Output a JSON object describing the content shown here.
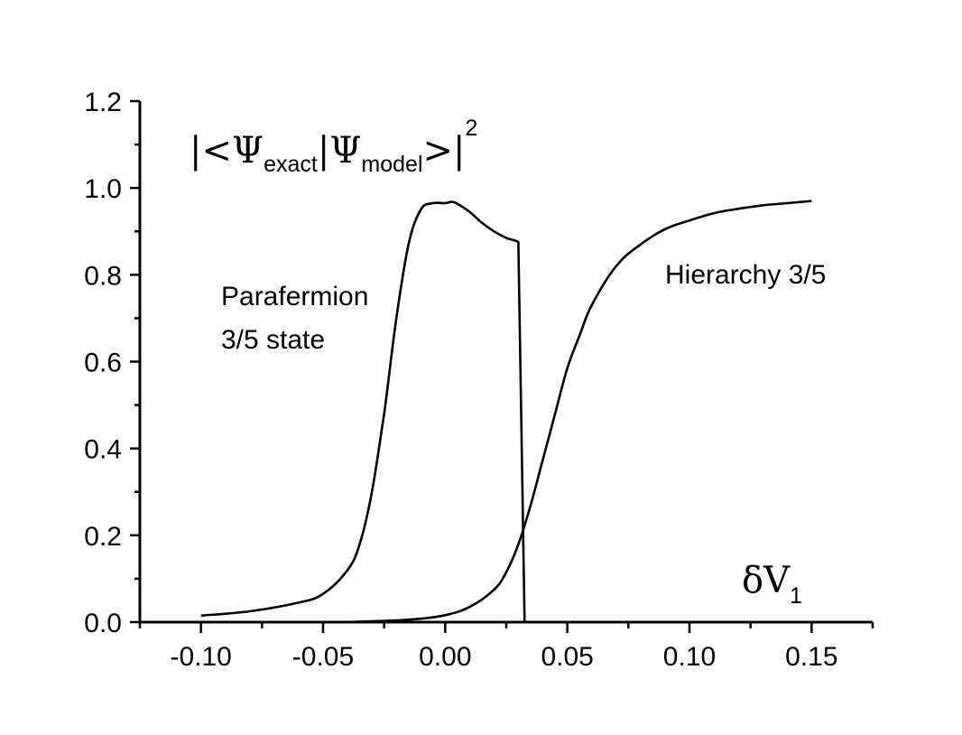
{
  "chart_data": {
    "type": "line",
    "xlim": [
      -0.125,
      0.175
    ],
    "ylim": [
      0.0,
      1.2
    ],
    "x_ticks": [
      "-0.10",
      "-0.05",
      "0.00",
      "0.05",
      "0.10",
      "0.15"
    ],
    "y_ticks": [
      "0.0",
      "0.2",
      "0.4",
      "0.6",
      "0.8",
      "1.0",
      "1.2"
    ],
    "grid": false,
    "ylabel": {
      "open": "|<Ψ",
      "sub1": "exact",
      "mid": "|Ψ",
      "sub2": "model",
      "close": ">|",
      "sup": "2"
    },
    "xlabel": {
      "main": "δV",
      "sub": "1"
    },
    "annotations": {
      "parafermion_line1": "Parafermion",
      "parafermion_line2": "3/5 state",
      "hierarchy": "Hierarchy 3/5"
    },
    "series": [
      {
        "x": [
          -0.1,
          -0.08,
          -0.06,
          -0.05,
          -0.04,
          -0.035,
          -0.03,
          -0.025,
          -0.02,
          -0.015,
          -0.01,
          -0.005,
          0.0,
          0.003,
          0.006,
          0.01,
          0.015,
          0.02,
          0.025,
          0.03,
          0.03,
          0.0325
        ],
        "y": [
          0.015,
          0.025,
          0.045,
          0.065,
          0.12,
          0.18,
          0.3,
          0.48,
          0.7,
          0.87,
          0.95,
          0.965,
          0.965,
          0.968,
          0.96,
          0.945,
          0.92,
          0.9,
          0.885,
          0.875,
          0.86,
          0.0
        ]
      },
      {
        "x": [
          -0.04,
          -0.02,
          -0.01,
          0.0,
          0.01,
          0.02,
          0.025,
          0.03,
          0.035,
          0.04,
          0.045,
          0.05,
          0.055,
          0.06,
          0.07,
          0.08,
          0.09,
          0.1,
          0.11,
          0.12,
          0.13,
          0.14,
          0.15
        ],
        "y": [
          0.0,
          0.004,
          0.008,
          0.016,
          0.035,
          0.075,
          0.115,
          0.18,
          0.27,
          0.375,
          0.48,
          0.585,
          0.66,
          0.73,
          0.82,
          0.87,
          0.905,
          0.925,
          0.942,
          0.952,
          0.96,
          0.965,
          0.97
        ]
      }
    ]
  }
}
